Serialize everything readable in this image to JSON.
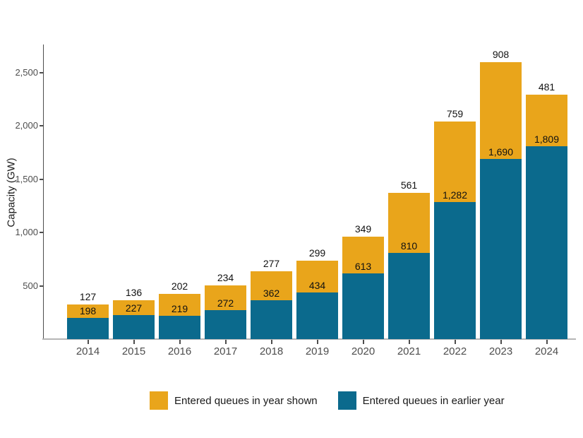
{
  "chart_data": {
    "type": "bar",
    "stacked": true,
    "title": "",
    "xlabel": "",
    "ylabel": "Capacity (GW)",
    "ylim": [
      0,
      2780
    ],
    "grid": false,
    "legend_position": "bottom",
    "categories": [
      "2014",
      "2015",
      "2016",
      "2017",
      "2018",
      "2019",
      "2020",
      "2021",
      "2022",
      "2023",
      "2024"
    ],
    "yticks": [
      {
        "value": 500,
        "label": "500"
      },
      {
        "value": 1000,
        "label": "1,000"
      },
      {
        "value": 1500,
        "label": "1,500"
      },
      {
        "value": 2000,
        "label": "2,000"
      },
      {
        "value": 2500,
        "label": "2,500"
      }
    ],
    "series": [
      {
        "name": "Entered queues in year shown",
        "color": "#E9A51B",
        "values": [
          127,
          136,
          202,
          234,
          277,
          299,
          349,
          561,
          759,
          908,
          481
        ],
        "value_labels": [
          "127",
          "136",
          "202",
          "234",
          "277",
          "299",
          "349",
          "561",
          "759",
          "908",
          "481"
        ]
      },
      {
        "name": "Entered queues in earlier year",
        "color": "#0B6A8D",
        "values": [
          198,
          227,
          219,
          272,
          362,
          434,
          613,
          810,
          1282,
          1690,
          1809
        ],
        "value_labels": [
          "198",
          "227",
          "219",
          "272",
          "362",
          "434",
          "613",
          "810",
          "1,282",
          "1,690",
          "1,809"
        ]
      }
    ]
  },
  "legend": {
    "items": [
      {
        "label": "Entered queues in year shown",
        "color": "#E9A51B"
      },
      {
        "label": "Entered queues in earlier year",
        "color": "#0B6A8D"
      }
    ]
  }
}
